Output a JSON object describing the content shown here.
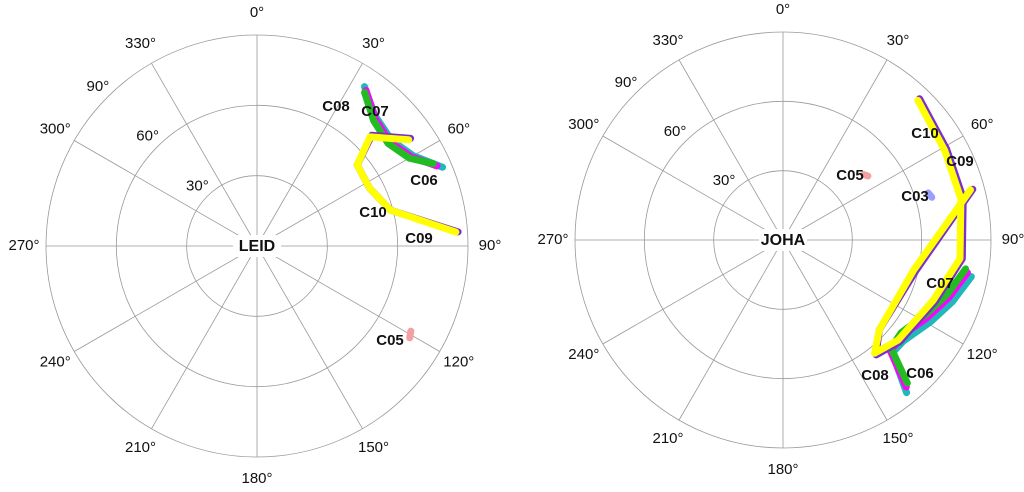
{
  "chart_data": [
    {
      "type": "polar",
      "station": "LEID",
      "rlim": [
        0,
        90
      ],
      "rticks": [
        {
          "value": 30,
          "label": "30°"
        },
        {
          "value": 60,
          "label": "60°"
        },
        {
          "value": 90,
          "label": "90°"
        }
      ],
      "thetaticks": [
        {
          "value": 0,
          "label": "0°"
        },
        {
          "value": 30,
          "label": "30°"
        },
        {
          "value": 60,
          "label": "60°"
        },
        {
          "value": 90,
          "label": "90°"
        },
        {
          "value": 120,
          "label": "120°"
        },
        {
          "value": 150,
          "label": "150°"
        },
        {
          "value": 180,
          "label": "180°"
        },
        {
          "value": 210,
          "label": "210°"
        },
        {
          "value": 240,
          "label": "240°"
        },
        {
          "value": 270,
          "label": "270°"
        },
        {
          "value": 300,
          "label": "300°"
        },
        {
          "value": 330,
          "label": "330°"
        }
      ],
      "series": [
        {
          "name": "C08",
          "color": "#20b8b8",
          "label_color": "#20b8b8",
          "theta": [
            34,
            42,
            52,
            60,
            67
          ],
          "r": [
            82,
            75,
            73,
            77,
            86
          ]
        },
        {
          "name": "C07",
          "color": "#ff00ff",
          "label_color": "#ff00ff",
          "theta": [
            35,
            43,
            52,
            60,
            66
          ],
          "r": [
            81,
            74,
            72,
            76,
            84
          ]
        },
        {
          "name": "C06",
          "color": "#22bb22",
          "label_color": "#22bb22",
          "theta": [
            35,
            43,
            52,
            60,
            65
          ],
          "r": [
            80,
            73,
            71,
            75,
            83
          ]
        },
        {
          "name": "C09",
          "color": "#7a2ed0",
          "label_color": "#7a2ed0",
          "theta": [
            55,
            46,
            51,
            63,
            75,
            86
          ],
          "r": [
            80,
            68,
            55,
            54,
            59,
            86
          ]
        },
        {
          "name": "C10",
          "color": "#ffff00",
          "label_color": "#f4a460",
          "theta": [
            55,
            46,
            51,
            63,
            75,
            86
          ],
          "r": [
            79,
            67,
            55,
            54,
            59,
            85
          ]
        },
        {
          "name": "C05",
          "color": "#f4a0a0",
          "label_color": "#ff0000",
          "theta": [
            119,
            121
          ],
          "r": [
            75,
            76
          ]
        }
      ]
    },
    {
      "type": "polar",
      "station": "JOHA",
      "rlim": [
        0,
        90
      ],
      "rticks": [
        {
          "value": 30,
          "label": "30°"
        },
        {
          "value": 60,
          "label": "60°"
        },
        {
          "value": 90,
          "label": "90°"
        }
      ],
      "thetaticks": [
        {
          "value": 0,
          "label": "0°"
        },
        {
          "value": 30,
          "label": "30°"
        },
        {
          "value": 60,
          "label": "60°"
        },
        {
          "value": 90,
          "label": "90°"
        },
        {
          "value": 120,
          "label": "120°"
        },
        {
          "value": 150,
          "label": "150°"
        },
        {
          "value": 180,
          "label": "180°"
        },
        {
          "value": 210,
          "label": "210°"
        },
        {
          "value": 240,
          "label": "240°"
        },
        {
          "value": 270,
          "label": "270°"
        },
        {
          "value": 300,
          "label": "300°"
        },
        {
          "value": 330,
          "label": "330°"
        }
      ],
      "series": [
        {
          "name": "C08",
          "color": "#20b8b8",
          "label_color": "#20b8b8",
          "theta": [
            101,
            110,
            119,
            130,
            136,
            141
          ],
          "r": [
            83,
            78,
            73,
            68,
            68,
            85
          ]
        },
        {
          "name": "C07",
          "color": "#ff00ff",
          "label_color": "#ff00ff",
          "theta": [
            100,
            109,
            118,
            129,
            136,
            140
          ],
          "r": [
            81,
            76,
            71,
            66,
            67,
            83
          ]
        },
        {
          "name": "C06",
          "color": "#22bb22",
          "label_color": "#22bb22",
          "theta": [
            99,
            108,
            117,
            128,
            135,
            139
          ],
          "r": [
            80,
            75,
            70,
            65,
            66,
            82
          ]
        },
        {
          "name": "C09",
          "color": "#7a2ed0",
          "label_color": "#7a2ed0",
          "theta": [
            44,
            61,
            77,
            96,
            112,
            131,
            141,
            133,
            103,
            75
          ],
          "r": [
            85,
            81,
            80,
            78,
            71,
            67,
            64,
            57,
            59,
            85
          ]
        },
        {
          "name": "C10",
          "color": "#ffff00",
          "label_color": "#f4a460",
          "theta": [
            44,
            61,
            77,
            96,
            112,
            131,
            141,
            133,
            103,
            75
          ],
          "r": [
            84,
            80,
            79,
            77,
            70,
            66,
            63,
            57,
            58,
            84
          ]
        },
        {
          "name": "C05",
          "color": "#f4a0a0",
          "label_color": "#ff0000",
          "theta": [
            51,
            53
          ],
          "r": [
            45,
            46
          ]
        },
        {
          "name": "C03",
          "color": "#9aa0ff",
          "label_color": "#0000dd",
          "theta": [
            72,
            74
          ],
          "r": [
            66,
            67
          ]
        }
      ]
    }
  ]
}
